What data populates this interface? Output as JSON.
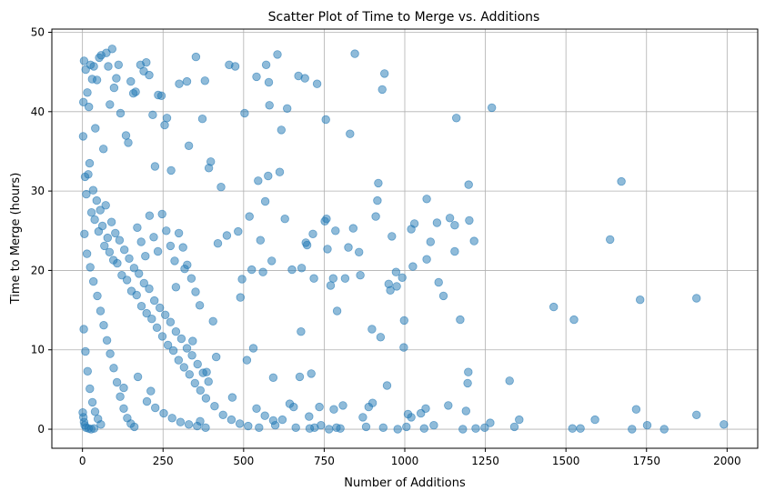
{
  "chart_data": {
    "type": "scatter",
    "title": "Scatter Plot of Time to Merge vs. Additions",
    "xlabel": "Number of Additions",
    "ylabel": "Time to Merge (hours)",
    "xlim": [
      -95,
      2095
    ],
    "ylim": [
      -2.4,
      50.4
    ],
    "xticks": [
      0,
      250,
      500,
      750,
      1000,
      1250,
      1500,
      1750,
      2000
    ],
    "yticks": [
      0,
      10,
      20,
      30,
      40,
      50
    ],
    "grid": true,
    "marker_color": "#1f77b4",
    "marker_alpha": 0.5,
    "points": [
      [
        1990,
        0.6
      ],
      [
        1905,
        16.5
      ],
      [
        1905,
        1.8
      ],
      [
        1805,
        0.0
      ],
      [
        1752,
        0.5
      ],
      [
        1730,
        16.3
      ],
      [
        1718,
        2.5
      ],
      [
        1705,
        0.0
      ],
      [
        1672,
        31.2
      ],
      [
        1637,
        23.9
      ],
      [
        1590,
        1.2
      ],
      [
        1545,
        0.1
      ],
      [
        1525,
        13.8
      ],
      [
        1520,
        0.1
      ],
      [
        1462,
        15.4
      ],
      [
        1355,
        1.2
      ],
      [
        1340,
        0.3
      ],
      [
        1325,
        6.1
      ],
      [
        1270,
        40.5
      ],
      [
        1265,
        0.8
      ],
      [
        1248,
        0.2
      ],
      [
        1220,
        0.1
      ],
      [
        1215,
        23.7
      ],
      [
        1200,
        26.3
      ],
      [
        1198,
        30.8
      ],
      [
        1197,
        7.2
      ],
      [
        1195,
        5.8
      ],
      [
        1190,
        2.3
      ],
      [
        1180,
        0.0
      ],
      [
        1172,
        13.8
      ],
      [
        1160,
        39.2
      ],
      [
        1155,
        25.7
      ],
      [
        1155,
        22.4
      ],
      [
        1140,
        26.6
      ],
      [
        1135,
        3.0
      ],
      [
        1120,
        16.8
      ],
      [
        1105,
        18.5
      ],
      [
        1100,
        26.0
      ],
      [
        1090,
        0.5
      ],
      [
        1080,
        23.6
      ],
      [
        1068,
        29.0
      ],
      [
        1068,
        21.4
      ],
      [
        1065,
        2.6
      ],
      [
        1060,
        0.1
      ],
      [
        1050,
        2.0
      ],
      [
        1030,
        25.9
      ],
      [
        1025,
        20.5
      ],
      [
        1020,
        25.2
      ],
      [
        1020,
        1.5
      ],
      [
        1010,
        1.9
      ],
      [
        1005,
        0.3
      ],
      [
        998,
        13.7
      ],
      [
        997,
        10.3
      ],
      [
        992,
        19.1
      ],
      [
        978,
        0.0
      ],
      [
        975,
        18.0
      ],
      [
        973,
        19.8
      ],
      [
        960,
        24.3
      ],
      [
        955,
        17.5
      ],
      [
        950,
        18.3
      ],
      [
        945,
        5.5
      ],
      [
        937,
        44.8
      ],
      [
        933,
        0.2
      ],
      [
        930,
        42.8
      ],
      [
        925,
        11.6
      ],
      [
        918,
        31.0
      ],
      [
        915,
        28.8
      ],
      [
        910,
        26.8
      ],
      [
        900,
        3.3
      ],
      [
        898,
        12.6
      ],
      [
        888,
        2.8
      ],
      [
        880,
        0.3
      ],
      [
        870,
        1.5
      ],
      [
        862,
        19.4
      ],
      [
        858,
        22.3
      ],
      [
        845,
        47.3
      ],
      [
        840,
        25.3
      ],
      [
        830,
        37.2
      ],
      [
        825,
        22.9
      ],
      [
        815,
        19.0
      ],
      [
        808,
        3.0
      ],
      [
        800,
        0.1
      ],
      [
        790,
        14.9
      ],
      [
        788,
        0.2
      ],
      [
        785,
        25.0
      ],
      [
        780,
        2.5
      ],
      [
        778,
        19.0
      ],
      [
        770,
        18.1
      ],
      [
        765,
        0.0
      ],
      [
        760,
        22.7
      ],
      [
        757,
        26.5
      ],
      [
        755,
        39.0
      ],
      [
        752,
        26.2
      ],
      [
        740,
        0.5
      ],
      [
        735,
        2.8
      ],
      [
        728,
        43.5
      ],
      [
        720,
        0.2
      ],
      [
        718,
        19.0
      ],
      [
        715,
        24.6
      ],
      [
        710,
        7.0
      ],
      [
        705,
        0.1
      ],
      [
        703,
        1.6
      ],
      [
        697,
        23.2
      ],
      [
        693,
        23.5
      ],
      [
        690,
        44.2
      ],
      [
        680,
        20.3
      ],
      [
        678,
        12.3
      ],
      [
        674,
        6.6
      ],
      [
        670,
        44.5
      ],
      [
        662,
        0.2
      ],
      [
        655,
        2.8
      ],
      [
        650,
        20.1
      ],
      [
        643,
        3.2
      ],
      [
        635,
        40.4
      ],
      [
        628,
        26.5
      ],
      [
        620,
        1.2
      ],
      [
        617,
        37.7
      ],
      [
        612,
        32.4
      ],
      [
        605,
        47.2
      ],
      [
        598,
        0.5
      ],
      [
        592,
        6.5
      ],
      [
        587,
        21.2
      ],
      [
        580,
        40.8
      ],
      [
        578,
        43.7
      ],
      [
        576,
        31.9
      ],
      [
        570,
        45.9
      ],
      [
        567,
        28.7
      ],
      [
        560,
        19.8
      ],
      [
        552,
        23.8
      ],
      [
        548,
        0.2
      ],
      [
        545,
        31.3
      ],
      [
        540,
        44.4
      ],
      [
        530,
        10.2
      ],
      [
        525,
        20.1
      ],
      [
        518,
        26.8
      ],
      [
        510,
        8.7
      ],
      [
        503,
        39.8
      ],
      [
        495,
        18.9
      ],
      [
        490,
        16.6
      ],
      [
        483,
        24.9
      ],
      [
        474,
        45.7
      ],
      [
        465,
        4.0
      ],
      [
        455,
        45.9
      ],
      [
        448,
        24.4
      ],
      [
        430,
        30.5
      ],
      [
        420,
        23.4
      ],
      [
        415,
        9.1
      ],
      [
        405,
        13.6
      ],
      [
        398,
        33.7
      ],
      [
        392,
        32.9
      ],
      [
        385,
        7.2
      ],
      [
        380,
        43.9
      ],
      [
        372,
        39.1
      ],
      [
        365,
        1.0
      ],
      [
        352,
        46.9
      ],
      [
        342,
        11.1
      ],
      [
        330,
        35.7
      ],
      [
        324,
        43.8
      ],
      [
        317,
        20.2
      ],
      [
        300,
        43.5
      ],
      [
        290,
        17.9
      ],
      [
        275,
        32.6
      ],
      [
        262,
        39.2
      ],
      [
        255,
        38.3
      ],
      [
        245,
        42.0
      ],
      [
        235,
        42.1
      ],
      [
        225,
        33.1
      ],
      [
        218,
        39.6
      ],
      [
        212,
        4.8
      ],
      [
        207,
        44.6
      ],
      [
        198,
        46.2
      ],
      [
        190,
        45.1
      ],
      [
        180,
        45.9
      ],
      [
        172,
        6.6
      ],
      [
        165,
        42.5
      ],
      [
        158,
        42.3
      ],
      [
        150,
        43.8
      ],
      [
        142,
        36.1
      ],
      [
        135,
        37.0
      ],
      [
        128,
        5.2
      ],
      [
        118,
        39.8
      ],
      [
        112,
        45.9
      ],
      [
        105,
        44.2
      ],
      [
        98,
        43.0
      ],
      [
        92,
        47.9
      ],
      [
        85,
        40.9
      ],
      [
        80,
        45.7
      ],
      [
        74,
        47.4
      ],
      [
        65,
        35.3
      ],
      [
        58,
        47.1
      ],
      [
        52,
        46.8
      ],
      [
        45,
        44.0
      ],
      [
        40,
        37.9
      ],
      [
        35,
        45.7
      ],
      [
        30,
        44.1
      ],
      [
        25,
        45.9
      ],
      [
        20,
        40.6
      ],
      [
        15,
        42.4
      ],
      [
        10,
        45.3
      ],
      [
        5,
        46.4
      ],
      [
        3,
        41.2
      ],
      [
        2,
        36.9
      ],
      [
        8,
        31.8
      ],
      [
        12,
        29.6
      ],
      [
        18,
        32.1
      ],
      [
        22,
        33.5
      ],
      [
        28,
        27.3
      ],
      [
        33,
        30.1
      ],
      [
        38,
        26.4
      ],
      [
        44,
        28.8
      ],
      [
        50,
        24.9
      ],
      [
        55,
        27.6
      ],
      [
        62,
        25.6
      ],
      [
        68,
        23.1
      ],
      [
        72,
        28.2
      ],
      [
        78,
        24.1
      ],
      [
        84,
        22.3
      ],
      [
        90,
        26.1
      ],
      [
        96,
        21.3
      ],
      [
        102,
        24.7
      ],
      [
        108,
        20.9
      ],
      [
        115,
        23.8
      ],
      [
        122,
        19.4
      ],
      [
        130,
        22.6
      ],
      [
        138,
        18.8
      ],
      [
        145,
        21.5
      ],
      [
        152,
        17.4
      ],
      [
        160,
        20.3
      ],
      [
        168,
        16.9
      ],
      [
        175,
        19.6
      ],
      [
        183,
        15.5
      ],
      [
        191,
        18.4
      ],
      [
        199,
        14.6
      ],
      [
        207,
        17.7
      ],
      [
        215,
        13.9
      ],
      [
        223,
        16.2
      ],
      [
        231,
        12.8
      ],
      [
        240,
        15.3
      ],
      [
        248,
        11.7
      ],
      [
        257,
        14.4
      ],
      [
        265,
        10.6
      ],
      [
        273,
        13.5
      ],
      [
        282,
        9.9
      ],
      [
        290,
        12.3
      ],
      [
        298,
        8.7
      ],
      [
        307,
        11.4
      ],
      [
        315,
        7.8
      ],
      [
        324,
        10.2
      ],
      [
        332,
        6.9
      ],
      [
        340,
        9.3
      ],
      [
        349,
        5.8
      ],
      [
        357,
        8.2
      ],
      [
        366,
        4.9
      ],
      [
        374,
        7.1
      ],
      [
        383,
        3.9
      ],
      [
        391,
        6.0
      ],
      [
        6,
        24.6
      ],
      [
        14,
        22.1
      ],
      [
        24,
        20.4
      ],
      [
        34,
        18.6
      ],
      [
        46,
        16.8
      ],
      [
        56,
        14.9
      ],
      [
        66,
        13.1
      ],
      [
        76,
        11.2
      ],
      [
        86,
        9.5
      ],
      [
        97,
        7.7
      ],
      [
        107,
        5.9
      ],
      [
        117,
        4.1
      ],
      [
        128,
        2.6
      ],
      [
        139,
        1.4
      ],
      [
        150,
        0.7
      ],
      [
        161,
        0.3
      ],
      [
        4,
        12.6
      ],
      [
        9,
        9.8
      ],
      [
        16,
        7.3
      ],
      [
        23,
        5.1
      ],
      [
        31,
        3.4
      ],
      [
        39,
        2.2
      ],
      [
        48,
        1.3
      ],
      [
        57,
        0.6
      ],
      [
        1,
        2.1
      ],
      [
        3,
        1.5
      ],
      [
        5,
        0.9
      ],
      [
        7,
        0.5
      ],
      [
        11,
        0.2
      ],
      [
        19,
        0.1
      ],
      [
        27,
        0.0
      ],
      [
        36,
        0.1
      ],
      [
        170,
        25.4
      ],
      [
        182,
        23.6
      ],
      [
        195,
        21.8
      ],
      [
        208,
        26.9
      ],
      [
        221,
        24.2
      ],
      [
        234,
        22.4
      ],
      [
        247,
        27.1
      ],
      [
        260,
        25.0
      ],
      [
        273,
        23.1
      ],
      [
        286,
        21.2
      ],
      [
        299,
        24.7
      ],
      [
        312,
        22.9
      ],
      [
        325,
        20.7
      ],
      [
        338,
        19.0
      ],
      [
        351,
        17.3
      ],
      [
        364,
        15.6
      ],
      [
        200,
        3.5
      ],
      [
        226,
        2.7
      ],
      [
        252,
        2.0
      ],
      [
        278,
        1.4
      ],
      [
        304,
        0.9
      ],
      [
        330,
        0.6
      ],
      [
        356,
        0.4
      ],
      [
        382,
        0.2
      ],
      [
        410,
        2.9
      ],
      [
        436,
        1.8
      ],
      [
        462,
        1.2
      ],
      [
        488,
        0.7
      ],
      [
        514,
        0.4
      ],
      [
        540,
        2.6
      ],
      [
        566,
        1.7
      ],
      [
        592,
        1.1
      ]
    ]
  }
}
